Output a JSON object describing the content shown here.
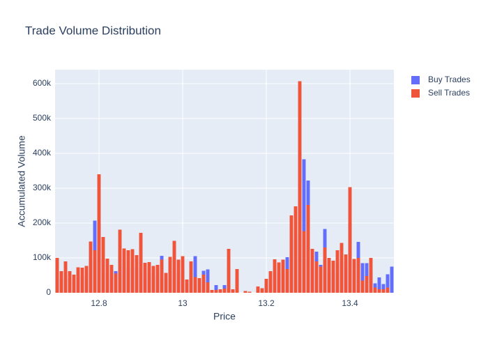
{
  "chart_data": {
    "type": "bar",
    "barmode": "overlay",
    "title": "Trade Volume Distribution",
    "x_label": "Price",
    "y_label": "Accumulated Volume",
    "x": [
      12.7,
      12.71,
      12.72,
      12.73,
      12.74,
      12.75,
      12.76,
      12.77,
      12.78,
      12.79,
      12.8,
      12.81,
      12.82,
      12.83,
      12.84,
      12.85,
      12.86,
      12.87,
      12.88,
      12.89,
      12.9,
      12.91,
      12.92,
      12.93,
      12.94,
      12.95,
      12.96,
      12.97,
      12.98,
      12.99,
      13.0,
      13.01,
      13.02,
      13.03,
      13.04,
      13.05,
      13.06,
      13.07,
      13.08,
      13.09,
      13.1,
      13.11,
      13.12,
      13.13,
      13.14,
      13.15,
      13.16,
      13.17,
      13.18,
      13.19,
      13.2,
      13.21,
      13.22,
      13.23,
      13.24,
      13.25,
      13.26,
      13.27,
      13.28,
      13.29,
      13.3,
      13.31,
      13.32,
      13.33,
      13.34,
      13.35,
      13.36,
      13.37,
      13.38,
      13.39,
      13.4,
      13.41,
      13.42,
      13.43,
      13.44,
      13.45,
      13.46,
      13.47,
      13.48,
      13.49,
      13.5
    ],
    "series": [
      {
        "name": "Buy Trades",
        "color": "#636efa",
        "values": [
          60000,
          40000,
          50000,
          40000,
          30000,
          50000,
          45000,
          50000,
          100000,
          207000,
          200000,
          100000,
          60000,
          50000,
          62000,
          120000,
          80000,
          70000,
          80000,
          70000,
          110000,
          50000,
          60000,
          50000,
          50000,
          106000,
          40000,
          70000,
          100000,
          60000,
          70000,
          25000,
          60000,
          105000,
          30000,
          63000,
          67000,
          5000,
          22000,
          6000,
          22000,
          80000,
          6000,
          40000,
          0,
          3000,
          2000,
          0,
          10000,
          8000,
          25000,
          40000,
          60000,
          55000,
          60000,
          102000,
          150000,
          160000,
          400000,
          383000,
          322000,
          80000,
          118000,
          80000,
          183000,
          60000,
          60000,
          80000,
          90000,
          80000,
          200000,
          60000,
          146000,
          85000,
          85000,
          60000,
          27000,
          44000,
          25000,
          53000,
          75000
        ]
      },
      {
        "name": "Sell Trades",
        "color": "#ef553b",
        "values": [
          100000,
          62000,
          90000,
          62000,
          52000,
          73000,
          72000,
          77000,
          147000,
          122000,
          340000,
          160000,
          98000,
          80000,
          55000,
          181000,
          127000,
          122000,
          125000,
          108000,
          172000,
          86000,
          88000,
          77000,
          80000,
          95000,
          57000,
          103000,
          149000,
          95000,
          105000,
          38000,
          90000,
          45000,
          42000,
          52000,
          30000,
          8000,
          8000,
          10000,
          12000,
          126000,
          10000,
          68000,
          0,
          5000,
          3000,
          0,
          18000,
          13000,
          40000,
          62000,
          96000,
          87000,
          95000,
          68000,
          222000,
          248000,
          607000,
          177000,
          252000,
          126000,
          90000,
          75000,
          130000,
          100000,
          92000,
          122000,
          143000,
          110000,
          303000,
          97000,
          100000,
          35000,
          48000,
          100000,
          15000,
          10000,
          10000,
          15000,
          0
        ]
      }
    ],
    "xlim": [
      12.695,
      13.505
    ],
    "xticks": [
      12.8,
      13,
      13.2,
      13.4
    ],
    "ylim": [
      0,
      640000
    ],
    "yticks": [
      0,
      {
        "value": 100000,
        "label": "100k"
      },
      {
        "value": 200000,
        "label": "200k"
      },
      {
        "value": 300000,
        "label": "300k"
      },
      {
        "value": 400000,
        "label": "400k"
      },
      {
        "value": 500000,
        "label": "500k"
      },
      {
        "value": 600000,
        "label": "600k"
      }
    ],
    "grid": true,
    "legend": "right"
  }
}
